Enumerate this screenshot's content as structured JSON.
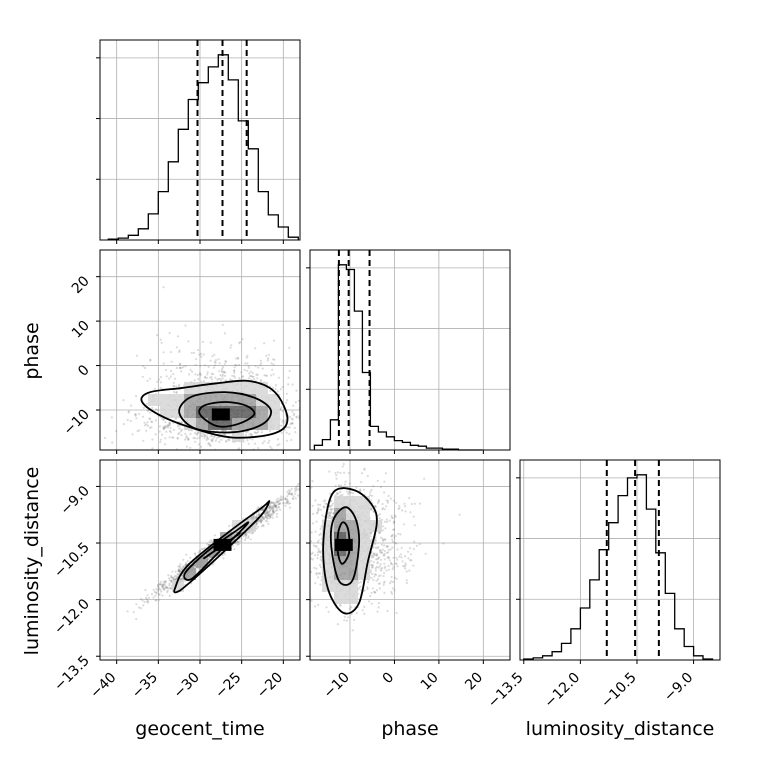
{
  "chart_data": {
    "type": "corner",
    "parameters": [
      "geocent_time",
      "phase",
      "luminosity_distance"
    ],
    "axis_labels": {
      "geocent_time": "geocent_time",
      "phase": "phase",
      "luminosity_distance": "luminosity_distance"
    },
    "ranges": {
      "geocent_time": [
        -42,
        -18
      ],
      "phase": [
        -19,
        26
      ],
      "luminosity_distance": [
        -13.6,
        -8.3
      ]
    },
    "ticks": {
      "geocent_time": {
        "values": [
          -40,
          -35,
          -30,
          -25,
          -20
        ],
        "labels": [
          "−40",
          "−35",
          "−30",
          "−25",
          "−20"
        ]
      },
      "phase": {
        "values": [
          -10,
          0,
          10,
          20
        ],
        "labels": [
          "−10",
          "0",
          "10",
          "20"
        ]
      },
      "luminosity_distance": {
        "values": [
          -13.5,
          -12.0,
          -10.5,
          -9.0
        ],
        "labels": [
          "−13.5",
          "−12.0",
          "−10.5",
          "−9.0"
        ]
      }
    },
    "quantiles": {
      "geocent_time": [
        -30.3,
        -27.3,
        -24.4
      ],
      "phase": [
        -12.5,
        -10.3,
        -5.6
      ],
      "luminosity_distance": [
        -11.3,
        -10.55,
        -9.92
      ]
    },
    "histograms": {
      "geocent_time": {
        "bin_edges": [
          -41,
          -39.8,
          -38.6,
          -37.4,
          -36.2,
          -35,
          -33.8,
          -32.6,
          -31.4,
          -30.2,
          -29,
          -27.8,
          -26.6,
          -25.4,
          -24.2,
          -23,
          -21.8,
          -20.6,
          -19.4,
          -18.2
        ],
        "counts": [
          1,
          2,
          5,
          12,
          28,
          52,
          84,
          119,
          151,
          169,
          186,
          199,
          172,
          128,
          98,
          52,
          27,
          14,
          3
        ]
      },
      "phase": {
        "bin_edges": [
          -18,
          -16.2,
          -14.4,
          -12.6,
          -10.8,
          -9,
          -7.2,
          -5.4,
          -3.6,
          -1.8,
          0,
          1.8,
          3.6,
          5.4,
          7.2,
          9,
          10.8,
          12.6,
          14.4,
          16.2,
          18,
          19.8
        ],
        "counts": [
          5,
          11,
          32,
          196,
          191,
          147,
          82,
          25,
          19,
          14,
          10,
          8,
          5,
          4,
          2,
          2,
          1,
          1,
          0,
          0,
          0
        ]
      },
      "luminosity_distance": {
        "bin_edges": [
          -13.5,
          -13.25,
          -13.0,
          -12.75,
          -12.5,
          -12.25,
          -12.0,
          -11.75,
          -11.5,
          -11.25,
          -11.0,
          -10.75,
          -10.5,
          -10.25,
          -10.0,
          -9.75,
          -9.5,
          -9.25,
          -9.0,
          -8.75,
          -8.5
        ],
        "counts": [
          1,
          2,
          4,
          8,
          16,
          30,
          50,
          77,
          106,
          132,
          158,
          175,
          178,
          145,
          103,
          64,
          30,
          13,
          4,
          1
        ]
      }
    },
    "joint": [
      {
        "x": "geocent_time",
        "y": "phase",
        "contours": [
          [
            [
              -30,
              -11
            ],
            [
              -28,
              -13.6
            ],
            [
              -25.5,
              -13.2
            ],
            [
              -23.5,
              -11
            ],
            [
              -24.5,
              -9
            ],
            [
              -27,
              -8.2
            ],
            [
              -29.5,
              -9
            ]
          ],
          [
            [
              -32.5,
              -10.5
            ],
            [
              -30.5,
              -14.2
            ],
            [
              -26,
              -15
            ],
            [
              -22.5,
              -13.2
            ],
            [
              -21.5,
              -10
            ],
            [
              -23.5,
              -7.2
            ],
            [
              -27,
              -6
            ],
            [
              -31,
              -7
            ]
          ],
          [
            [
              -37,
              -8
            ],
            [
              -35,
              -11
            ],
            [
              -31,
              -14
            ],
            [
              -26,
              -16.2
            ],
            [
              -21,
              -15.2
            ],
            [
              -19.5,
              -12
            ],
            [
              -21,
              -6
            ],
            [
              -24,
              -3.5
            ],
            [
              -28,
              -4
            ],
            [
              -32,
              -5
            ],
            [
              -36,
              -6
            ]
          ]
        ],
        "peak": [
          -27.5,
          -11
        ]
      },
      {
        "x": "geocent_time",
        "y": "luminosity_distance",
        "contours": [
          [
            [
              -29.5,
              -10.9
            ],
            [
              -27.2,
              -10.55
            ],
            [
              -25.3,
              -10.25
            ],
            [
              -25.9,
              -10.35
            ],
            [
              -28.2,
              -10.7
            ]
          ],
          [
            [
              -31.8,
              -11.3
            ],
            [
              -29,
              -10.7
            ],
            [
              -25.5,
              -10.15
            ],
            [
              -24.2,
              -9.95
            ],
            [
              -25.2,
              -10.2
            ],
            [
              -28,
              -10.8
            ],
            [
              -31,
              -11.45
            ]
          ],
          [
            [
              -33,
              -11.7
            ],
            [
              -31.5,
              -11.1
            ],
            [
              -26.5,
              -10.2
            ],
            [
              -22.5,
              -9.55
            ],
            [
              -21.7,
              -9.4
            ],
            [
              -22.8,
              -9.8
            ],
            [
              -27,
              -10.7
            ],
            [
              -31.5,
              -11.6
            ],
            [
              -32.8,
              -11.8
            ]
          ]
        ],
        "peak": [
          -27.3,
          -10.55
        ]
      },
      {
        "x": "phase",
        "y": "luminosity_distance",
        "contours": [
          [
            [
              -12.8,
              -10.7
            ],
            [
              -11.8,
              -11.05
            ],
            [
              -10.2,
              -10.75
            ],
            [
              -10.4,
              -10.15
            ],
            [
              -11.6,
              -9.95
            ],
            [
              -12.6,
              -10.2
            ]
          ],
          [
            [
              -14.2,
              -10.6
            ],
            [
              -12.5,
              -11.5
            ],
            [
              -9.5,
              -11.5
            ],
            [
              -8,
              -10.6
            ],
            [
              -8.6,
              -9.9
            ],
            [
              -11,
              -9.55
            ],
            [
              -13.8,
              -9.9
            ]
          ],
          [
            [
              -16,
              -10.5
            ],
            [
              -15,
              -11.7
            ],
            [
              -11.5,
              -12.35
            ],
            [
              -8,
              -12.1
            ],
            [
              -6,
              -11
            ],
            [
              -4,
              -10
            ],
            [
              -5,
              -9.5
            ],
            [
              -9,
              -9.1
            ],
            [
              -14,
              -9.2
            ]
          ]
        ],
        "peak": [
          -11.4,
          -10.55
        ]
      }
    ]
  }
}
